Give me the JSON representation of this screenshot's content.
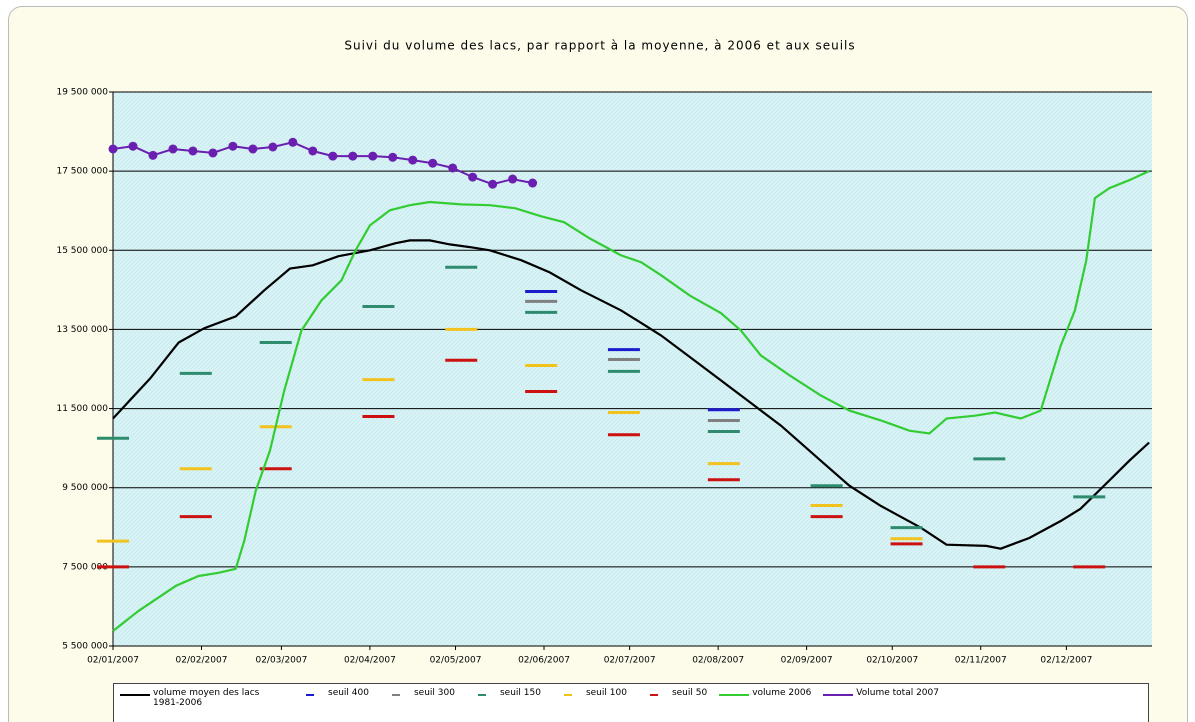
{
  "chart_data": {
    "type": "line",
    "title": "Suivi du volume des lacs, par rapport à la moyenne, à 2006 et aux seuils",
    "xlim": [
      0,
      364
    ],
    "xticks": [
      {
        "value": 0,
        "label": "02/01/2007"
      },
      {
        "value": 31,
        "label": "02/02/2007"
      },
      {
        "value": 59,
        "label": "02/03/2007"
      },
      {
        "value": 90,
        "label": "02/04/2007"
      },
      {
        "value": 120,
        "label": "02/05/2007"
      },
      {
        "value": 151,
        "label": "02/06/2007"
      },
      {
        "value": 181,
        "label": "02/07/2007"
      },
      {
        "value": 212,
        "label": "02/08/2007"
      },
      {
        "value": 243,
        "label": "02/09/2007"
      },
      {
        "value": 273,
        "label": "02/10/2007"
      },
      {
        "value": 304,
        "label": "02/11/2007"
      },
      {
        "value": 334,
        "label": "02/12/2007"
      }
    ],
    "ylim": [
      5500000,
      19500000
    ],
    "yticks": [
      {
        "value": 5500000,
        "label": "5 500 000"
      },
      {
        "value": 7500000,
        "label": "7 500 000"
      },
      {
        "value": 9500000,
        "label": "9 500 000"
      },
      {
        "value": 11500000,
        "label": "11 500 000"
      },
      {
        "value": 13500000,
        "label": "13 500 000"
      },
      {
        "value": 15500000,
        "label": "15 500 000"
      },
      {
        "value": 17500000,
        "label": "17 500 000"
      },
      {
        "value": 19500000,
        "label": "19 500 000"
      }
    ],
    "grid": true,
    "series": [
      {
        "name": "volume moyen des lacs 1981-2006",
        "color": "#000000",
        "style": "line",
        "x": [
          0,
          13,
          23,
          32,
          43,
          53,
          62,
          70,
          79,
          90,
          99,
          104,
          111,
          118,
          125,
          132,
          143,
          153,
          164,
          178,
          192,
          206,
          220,
          234,
          248,
          258,
          269,
          283,
          292,
          306,
          311,
          321,
          332,
          339,
          349,
          356,
          363
        ],
        "values": [
          11250000,
          12260000,
          13170000,
          13530000,
          13830000,
          14490000,
          15040000,
          15120000,
          15350000,
          15500000,
          15680000,
          15750000,
          15750000,
          15650000,
          15580000,
          15500000,
          15250000,
          14940000,
          14490000,
          13980000,
          13350000,
          12590000,
          11830000,
          11070000,
          10180000,
          9550000,
          9040000,
          8490000,
          8060000,
          8030000,
          7960000,
          8230000,
          8660000,
          8970000,
          9680000,
          10180000,
          10640000
        ]
      },
      {
        "name": "seuil 400",
        "color": "#1c1ccc",
        "style": "dash",
        "x": [
          150,
          179,
          214
        ],
        "values": [
          14460000,
          12990000,
          11470000
        ]
      },
      {
        "name": "seuil 300",
        "color": "#808080",
        "style": "dash",
        "x": [
          150,
          179,
          214
        ],
        "values": [
          14210000,
          12740000,
          11200000
        ]
      },
      {
        "name": "seuil 150",
        "color": "#2e8b6e",
        "style": "dash",
        "x": [
          0,
          29,
          57,
          93,
          122,
          150,
          179,
          214,
          250,
          278,
          307,
          342
        ],
        "values": [
          10750000,
          12390000,
          13170000,
          14080000,
          15070000,
          13930000,
          12440000,
          10920000,
          9550000,
          8490000,
          10230000,
          9270000
        ]
      },
      {
        "name": "seuil 100",
        "color": "#f2c21f",
        "style": "dash",
        "x": [
          0,
          29,
          57,
          93,
          122,
          150,
          179,
          214,
          250,
          278
        ],
        "values": [
          8150000,
          9980000,
          11040000,
          12230000,
          13500000,
          12590000,
          11400000,
          10110000,
          9050000,
          8210000
        ]
      },
      {
        "name": "seuil 50",
        "color": "#cc1111",
        "style": "dash",
        "x": [
          0,
          29,
          57,
          93,
          122,
          150,
          179,
          214,
          250,
          278,
          307,
          342
        ],
        "values": [
          7500000,
          8770000,
          9980000,
          11300000,
          12720000,
          11930000,
          10840000,
          9700000,
          8770000,
          8080000,
          7500000,
          7500000
        ]
      },
      {
        "name": "volume 2006",
        "color": "#33cc33",
        "style": "line",
        "x": [
          0,
          9,
          22,
          30,
          37,
          43,
          46,
          50,
          55,
          60,
          66,
          73,
          80,
          85,
          90,
          97,
          104,
          111,
          122,
          132,
          141,
          150,
          158,
          167,
          178,
          185,
          192,
          202,
          213,
          220,
          227,
          237,
          248,
          258,
          269,
          279,
          286,
          292,
          302,
          309,
          318,
          325,
          332,
          337,
          341,
          344,
          349,
          356,
          363
        ],
        "values": [
          5880000,
          6390000,
          7020000,
          7270000,
          7350000,
          7450000,
          8160000,
          9420000,
          10440000,
          11960000,
          13470000,
          14230000,
          14740000,
          15500000,
          16130000,
          16510000,
          16640000,
          16720000,
          16660000,
          16640000,
          16560000,
          16360000,
          16210000,
          15800000,
          15370000,
          15200000,
          14870000,
          14360000,
          13910000,
          13470000,
          12840000,
          12340000,
          11830000,
          11450000,
          11200000,
          10940000,
          10870000,
          11250000,
          11320000,
          11400000,
          11250000,
          11450000,
          13090000,
          13980000,
          15250000,
          16820000,
          17070000,
          17270000,
          17500000
        ]
      },
      {
        "name": "Volume total 2007",
        "color": "#6a1fb0",
        "style": "line",
        "marker": true,
        "x": [
          0,
          7,
          14,
          21,
          28,
          35,
          42,
          49,
          56,
          63,
          70,
          77,
          84,
          91,
          98,
          105,
          112,
          119,
          126,
          133,
          140,
          147
        ],
        "values": [
          18060000,
          18130000,
          17900000,
          18060000,
          18010000,
          17960000,
          18130000,
          18060000,
          18110000,
          18230000,
          18010000,
          17880000,
          17880000,
          17880000,
          17850000,
          17780000,
          17700000,
          17580000,
          17350000,
          17170000,
          17300000,
          17200000
        ]
      }
    ]
  }
}
